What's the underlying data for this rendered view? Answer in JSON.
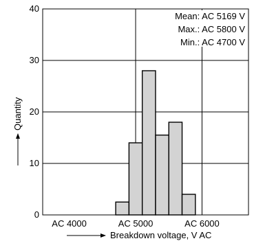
{
  "chart_data": {
    "type": "bar",
    "title": "",
    "xlabel": "Breakdown voltage, V AC",
    "ylabel": "Quantity",
    "xlim": [
      3600,
      6700
    ],
    "ylim": [
      0,
      40
    ],
    "x_ticks": [
      {
        "value": 4000,
        "label": "AC 4000"
      },
      {
        "value": 5000,
        "label": "AC 5000"
      },
      {
        "value": 6000,
        "label": "AC 6000"
      }
    ],
    "x_grid": [
      5000,
      6000
    ],
    "y_ticks": [
      0,
      10,
      20,
      30,
      40
    ],
    "grid": true,
    "bin_width": 200,
    "bins": [
      {
        "start": 4700,
        "value": 2.5
      },
      {
        "start": 4900,
        "value": 14
      },
      {
        "start": 5100,
        "value": 28
      },
      {
        "start": 5300,
        "value": 15.5
      },
      {
        "start": 5500,
        "value": 18
      },
      {
        "start": 5700,
        "value": 4
      },
      {
        "start": 5900,
        "value": 0
      }
    ],
    "stats": [
      "Mean: AC 5169 V",
      "Max.: AC 5800 V",
      "Min.: AC 4700 V"
    ],
    "bar_color": "#d3d3d3"
  }
}
